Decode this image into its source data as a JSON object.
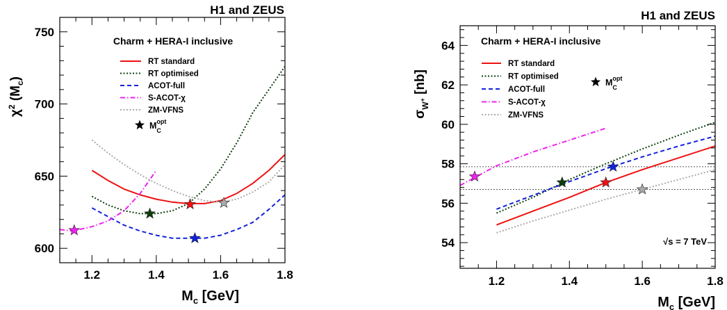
{
  "chart_data": [
    {
      "type": "line",
      "title": "H1 and ZEUS",
      "subtitle": "Charm + HERA-I inclusive",
      "xlabel_main": "M",
      "xlabel_sub": "c",
      "xlabel_unit": " [GeV]",
      "ylabel_main": "χ",
      "ylabel_sup": "2",
      "ylabel_tail": " (M",
      "ylabel_sub": "c",
      "ylabel_close": ")",
      "xlim": [
        1.1,
        1.8
      ],
      "ylim": [
        590,
        760
      ],
      "x_ticks": [
        1.2,
        1.4,
        1.6,
        1.8
      ],
      "x_tick_labels": [
        "1.2",
        "1.4",
        "1.6",
        "1.8"
      ],
      "y_ticks": [
        600,
        650,
        700,
        750
      ],
      "y_tick_labels": [
        "600",
        "650",
        "700",
        "750"
      ],
      "legend_position": "top-center",
      "series": [
        {
          "name": "RT standard",
          "color": "#ee1111",
          "dash": "solid",
          "x": [
            1.2,
            1.25,
            1.3,
            1.35,
            1.4,
            1.45,
            1.5,
            1.55,
            1.6,
            1.65,
            1.7,
            1.75,
            1.8
          ],
          "y": [
            654,
            647,
            641,
            637,
            634,
            632,
            631,
            631,
            633,
            638,
            645,
            654,
            665
          ]
        },
        {
          "name": "RT optimised",
          "color": "#0b3d0b",
          "dash": "dotted",
          "x": [
            1.2,
            1.25,
            1.3,
            1.35,
            1.4,
            1.45,
            1.5,
            1.55,
            1.6,
            1.65,
            1.7,
            1.75,
            1.8
          ],
          "y": [
            636,
            630,
            626,
            624,
            624,
            626,
            631,
            641,
            655,
            673,
            694,
            710,
            726
          ]
        },
        {
          "name": "ACOT-full",
          "color": "#1122dd",
          "dash": "dashed",
          "x": [
            1.2,
            1.25,
            1.3,
            1.35,
            1.4,
            1.45,
            1.5,
            1.55,
            1.6,
            1.65,
            1.7,
            1.75,
            1.8
          ],
          "y": [
            628,
            622,
            616,
            612,
            609,
            607,
            607,
            607,
            609,
            613,
            618,
            627,
            637
          ]
        },
        {
          "name": "S-ACOT-χ",
          "color": "#ee22ee",
          "dash": "dashdot",
          "x": [
            1.1,
            1.14,
            1.2,
            1.25,
            1.3,
            1.35,
            1.4
          ],
          "y": [
            613,
            612,
            615,
            619,
            626,
            638,
            654
          ]
        },
        {
          "name": "ZM-VFNS",
          "color": "#aaaaaa",
          "dash": "dotted",
          "x": [
            1.2,
            1.25,
            1.3,
            1.35,
            1.4,
            1.45,
            1.5,
            1.55,
            1.6,
            1.65,
            1.7,
            1.75,
            1.8
          ],
          "y": [
            675,
            666,
            658,
            651,
            645,
            640,
            636,
            633,
            632,
            634,
            639,
            646,
            658
          ]
        }
      ],
      "optimum_markers": [
        {
          "series": "RT standard",
          "color": "#ee1111",
          "x": 1.505,
          "y": 630.5
        },
        {
          "series": "RT optimised",
          "color": "#0b3d0b",
          "x": 1.38,
          "y": 624
        },
        {
          "series": "ACOT-full",
          "color": "#1122dd",
          "x": 1.52,
          "y": 607
        },
        {
          "series": "S-ACOT-χ",
          "color": "#ee22ee",
          "x": 1.145,
          "y": 612.5
        },
        {
          "series": "ZM-VFNS",
          "color": "#aaaaaa",
          "x": 1.61,
          "y": 631.5
        }
      ],
      "opt_marker_label_main": "M",
      "opt_marker_label_sub": "C",
      "opt_marker_label_sup": "opt"
    },
    {
      "type": "line",
      "title": "H1 and ZEUS",
      "subtitle": "Charm + HERA-I inclusive",
      "annotation": "√s = 7 TeV",
      "xlabel_main": "M",
      "xlabel_sub": "c",
      "xlabel_unit": " [GeV]",
      "ylabel_main": "σ",
      "ylabel_sub": "W",
      "ylabel_subsup": "+",
      "ylabel_unit": " [nb]",
      "xlim": [
        1.1,
        1.8
      ],
      "ylim": [
        52.7,
        65.0
      ],
      "x_ticks": [
        1.2,
        1.4,
        1.6,
        1.8
      ],
      "x_tick_labels": [
        "1.2",
        "1.4",
        "1.6",
        "1.8"
      ],
      "y_ticks": [
        54,
        56,
        58,
        60,
        62,
        64
      ],
      "y_tick_labels": [
        "54",
        "56",
        "58",
        "60",
        "62",
        "64"
      ],
      "reference_lines_y": [
        57.85,
        56.7
      ],
      "legend_position": "top-left",
      "series": [
        {
          "name": "RT standard",
          "color": "#ee1111",
          "dash": "solid",
          "x": [
            1.2,
            1.3,
            1.4,
            1.5,
            1.6,
            1.7,
            1.8
          ],
          "y": [
            54.9,
            55.6,
            56.3,
            57.05,
            57.7,
            58.3,
            58.9
          ]
        },
        {
          "name": "RT optimised",
          "color": "#0b3d0b",
          "dash": "dotted",
          "x": [
            1.2,
            1.3,
            1.4,
            1.5,
            1.6,
            1.7,
            1.8
          ],
          "y": [
            55.5,
            56.3,
            57.2,
            58.0,
            58.75,
            59.45,
            60.1
          ]
        },
        {
          "name": "ACOT-full",
          "color": "#1122dd",
          "dash": "dashed",
          "x": [
            1.2,
            1.3,
            1.4,
            1.5,
            1.6,
            1.7,
            1.8
          ],
          "y": [
            55.7,
            56.4,
            57.1,
            57.75,
            58.35,
            58.9,
            59.4
          ]
        },
        {
          "name": "S-ACOT-χ",
          "color": "#ee22ee",
          "dash": "dashdot",
          "x": [
            1.1,
            1.2,
            1.3,
            1.4,
            1.5
          ],
          "y": [
            56.9,
            57.9,
            58.6,
            59.2,
            59.8
          ]
        },
        {
          "name": "ZM-VFNS",
          "color": "#aaaaaa",
          "dash": "dotted",
          "x": [
            1.2,
            1.3,
            1.4,
            1.5,
            1.6,
            1.7,
            1.8
          ],
          "y": [
            54.5,
            55.1,
            55.65,
            56.2,
            56.7,
            57.2,
            57.7
          ]
        }
      ],
      "optimum_markers": [
        {
          "series": "RT standard",
          "color": "#ee1111",
          "x": 1.5,
          "y": 57.05
        },
        {
          "series": "RT optimised",
          "color": "#0b3d0b",
          "x": 1.38,
          "y": 57.05
        },
        {
          "series": "ACOT-full",
          "color": "#1122dd",
          "x": 1.52,
          "y": 57.85
        },
        {
          "series": "S-ACOT-χ",
          "color": "#ee22ee",
          "x": 1.14,
          "y": 57.35
        },
        {
          "series": "ZM-VFNS",
          "color": "#aaaaaa",
          "x": 1.6,
          "y": 56.7
        }
      ],
      "opt_marker_label_main": "M",
      "opt_marker_label_sub": "C",
      "opt_marker_label_sup": "opt"
    }
  ]
}
